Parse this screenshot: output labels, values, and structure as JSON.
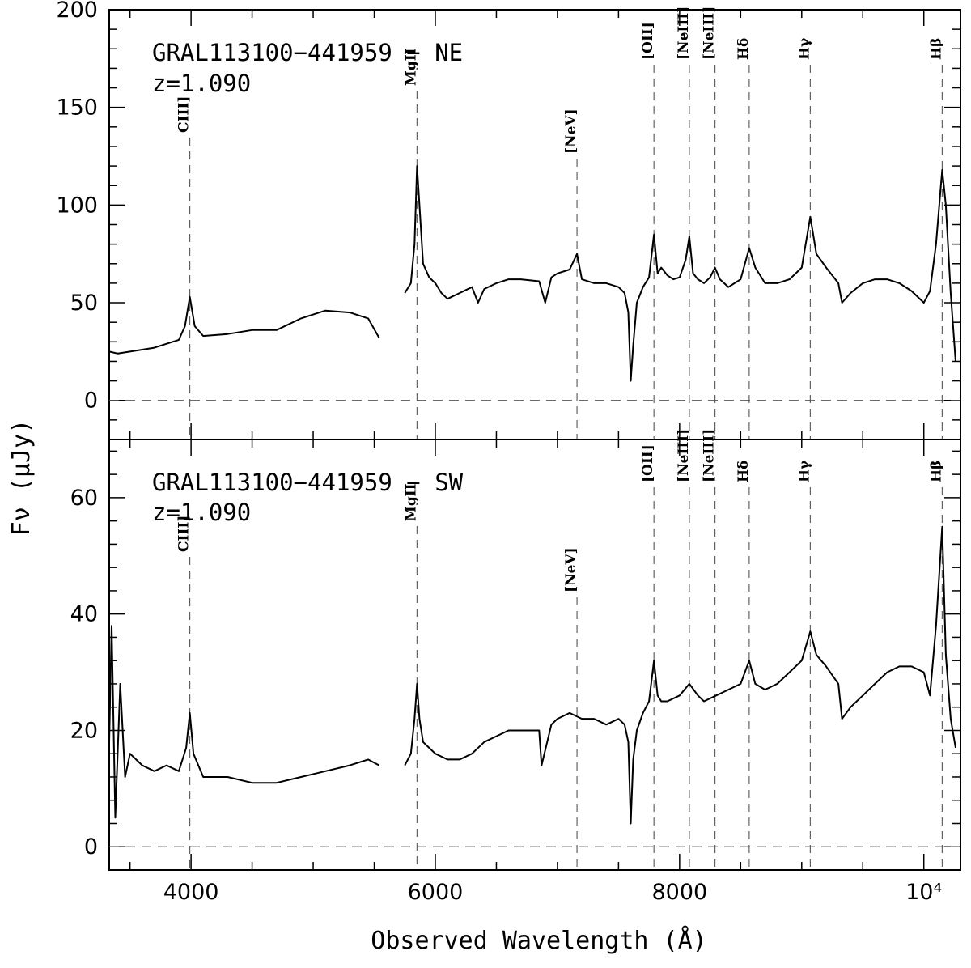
{
  "chart_data": {
    "type": "line",
    "xlabel": "Observed Wavelength (Å)",
    "ylabel": "Fν (μJy)",
    "xlim": [
      3330,
      10300
    ],
    "x_ticks": [
      4000,
      6000,
      8000,
      10000
    ],
    "x_tick_labels": [
      "4000",
      "6000",
      "8000",
      "10⁴"
    ],
    "grid": false,
    "emission_lines": [
      {
        "label": "CIII]",
        "wavelength": 3990
      },
      {
        "label": "MgII",
        "wavelength": 5850
      },
      {
        "label": "[NeV]",
        "wavelength": 7160
      },
      {
        "label": "[OII]",
        "wavelength": 7790
      },
      {
        "label": "[NeIII]",
        "wavelength": 8080
      },
      {
        "label": "[NeIII]",
        "wavelength": 8290
      },
      {
        "label": "Hδ",
        "wavelength": 8570
      },
      {
        "label": "Hγ",
        "wavelength": 9070
      },
      {
        "label": "Hβ",
        "wavelength": 10150
      }
    ],
    "panels": [
      {
        "title": "GRAL113100−441959 − NE",
        "redshift": "z=1.090",
        "ylim": [
          -20,
          200
        ],
        "y_ticks": [
          0,
          50,
          100,
          150,
          200
        ],
        "y_tick_labels": [
          "0",
          "50",
          "100",
          "150",
          "200"
        ],
        "zero_line": 0,
        "series": [
          {
            "x": [
              3330,
              3400,
              3500,
              3600,
              3700,
              3800,
              3900,
              3950,
              3990,
              4030,
              4100,
              4300,
              4500,
              4700,
              4900,
              5100,
              5300,
              5450,
              5540
            ],
            "y": [
              25,
              24,
              25,
              26,
              27,
              29,
              31,
              38,
              53,
              38,
              33,
              34,
              36,
              36,
              42,
              46,
              45,
              42,
              32
            ]
          },
          {
            "x": [
              5750,
              5800,
              5830,
              5850,
              5870,
              5900,
              5950,
              6000,
              6050,
              6100,
              6200,
              6300,
              6350,
              6400,
              6500,
              6600,
              6700,
              6850,
              6900,
              6950,
              7000,
              7100,
              7160,
              7200,
              7300,
              7400,
              7500,
              7550,
              7580,
              7600,
              7620,
              7650,
              7700,
              7750,
              7790,
              7820,
              7850,
              7900,
              7950,
              8000,
              8050,
              8080,
              8110,
              8150,
              8200,
              8250,
              8290,
              8330,
              8400,
              8500,
              8570,
              8620,
              8700,
              8800,
              8900,
              9000,
              9070,
              9120,
              9200,
              9300,
              9330,
              9400,
              9500,
              9600,
              9700,
              9800,
              9900,
              10000,
              10050,
              10100,
              10150,
              10180,
              10220,
              10260
            ],
            "y": [
              55,
              60,
              80,
              120,
              100,
              70,
              63,
              60,
              55,
              52,
              55,
              58,
              50,
              57,
              60,
              62,
              62,
              61,
              50,
              63,
              65,
              67,
              75,
              62,
              60,
              60,
              58,
              55,
              45,
              10,
              28,
              50,
              58,
              63,
              85,
              65,
              68,
              64,
              62,
              63,
              72,
              84,
              65,
              62,
              60,
              63,
              68,
              62,
              58,
              62,
              78,
              68,
              60,
              60,
              62,
              68,
              94,
              75,
              68,
              60,
              50,
              55,
              60,
              62,
              62,
              60,
              56,
              50,
              56,
              80,
              118,
              100,
              55,
              20
            ]
          }
        ]
      },
      {
        "title": "GRAL113100−441959 − SW",
        "redshift": "z=1.090",
        "ylim": [
          -4,
          70
        ],
        "y_ticks": [
          0,
          20,
          40,
          60
        ],
        "y_tick_labels": [
          "0",
          "20",
          "40",
          "60"
        ],
        "zero_line": 0,
        "series": [
          {
            "x": [
              3330,
              3350,
              3380,
              3420,
              3460,
              3500,
              3600,
              3700,
              3800,
              3900,
              3960,
              3990,
              4020,
              4100,
              4300,
              4500,
              4700,
              4900,
              5100,
              5300,
              5450,
              5540
            ],
            "y": [
              18,
              38,
              5,
              28,
              12,
              16,
              14,
              13,
              14,
              13,
              17,
              23,
              16,
              12,
              12,
              11,
              11,
              12,
              13,
              14,
              15,
              14
            ]
          },
          {
            "x": [
              5750,
              5800,
              5830,
              5850,
              5870,
              5900,
              5950,
              6000,
              6100,
              6200,
              6300,
              6400,
              6500,
              6600,
              6700,
              6850,
              6870,
              6950,
              7000,
              7100,
              7200,
              7300,
              7400,
              7500,
              7550,
              7580,
              7600,
              7620,
              7650,
              7700,
              7750,
              7790,
              7820,
              7850,
              7900,
              8000,
              8080,
              8150,
              8200,
              8300,
              8400,
              8500,
              8570,
              8620,
              8700,
              8800,
              8900,
              9000,
              9070,
              9120,
              9200,
              9300,
              9330,
              9400,
              9500,
              9600,
              9700,
              9800,
              9900,
              10000,
              10050,
              10100,
              10150,
              10180,
              10220,
              10260
            ],
            "y": [
              14,
              16,
              22,
              28,
              22,
              18,
              17,
              16,
              15,
              15,
              16,
              18,
              19,
              20,
              20,
              20,
              14,
              21,
              22,
              23,
              22,
              22,
              21,
              22,
              21,
              18,
              4,
              15,
              20,
              23,
              25,
              32,
              26,
              25,
              25,
              26,
              28,
              26,
              25,
              26,
              27,
              28,
              32,
              28,
              27,
              28,
              30,
              32,
              37,
              33,
              31,
              28,
              22,
              24,
              26,
              28,
              30,
              31,
              31,
              30,
              26,
              38,
              55,
              33,
              22,
              17
            ]
          }
        ]
      }
    ]
  }
}
